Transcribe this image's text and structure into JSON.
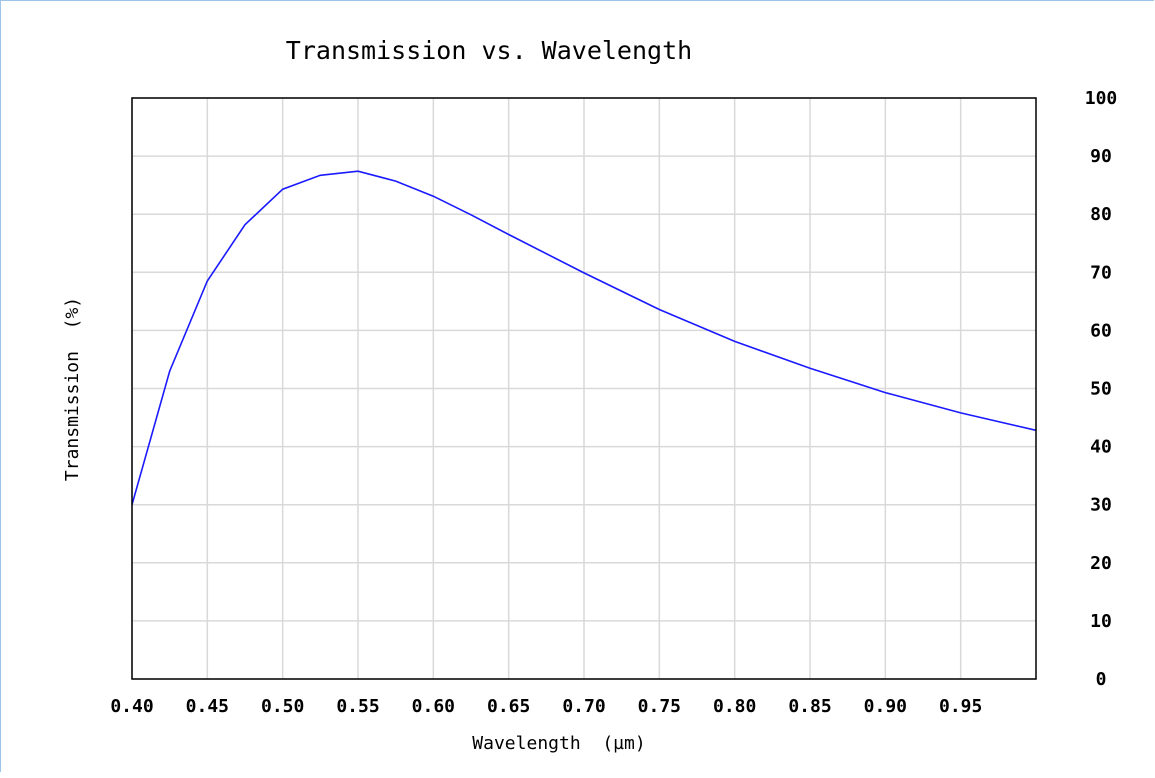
{
  "chart_data": {
    "type": "line",
    "title": "Transmission vs. Wavelength",
    "xlabel": "Wavelength  (µm)",
    "ylabel": "Transmission  (%)",
    "xlim": [
      0.4,
      1.0
    ],
    "ylim": [
      0,
      100
    ],
    "x_ticks": [
      "0.40",
      "0.45",
      "0.50",
      "0.55",
      "0.60",
      "0.65",
      "0.70",
      "0.75",
      "0.80",
      "0.85",
      "0.90",
      "0.95"
    ],
    "y_ticks": [
      "0",
      "10",
      "20",
      "30",
      "40",
      "50",
      "60",
      "70",
      "80",
      "90",
      "100"
    ],
    "y_axis_side": "right",
    "grid": true,
    "series": [
      {
        "color": "#1a1aff",
        "x": [
          0.4,
          0.425,
          0.45,
          0.475,
          0.5,
          0.525,
          0.55,
          0.575,
          0.6,
          0.625,
          0.65,
          0.7,
          0.75,
          0.8,
          0.85,
          0.9,
          0.95,
          1.0
        ],
        "y": [
          30.0,
          53.0,
          68.5,
          78.2,
          84.3,
          86.7,
          87.4,
          85.7,
          83.1,
          79.9,
          76.5,
          69.9,
          63.6,
          58.1,
          53.5,
          49.3,
          45.8,
          42.8
        ]
      }
    ]
  }
}
